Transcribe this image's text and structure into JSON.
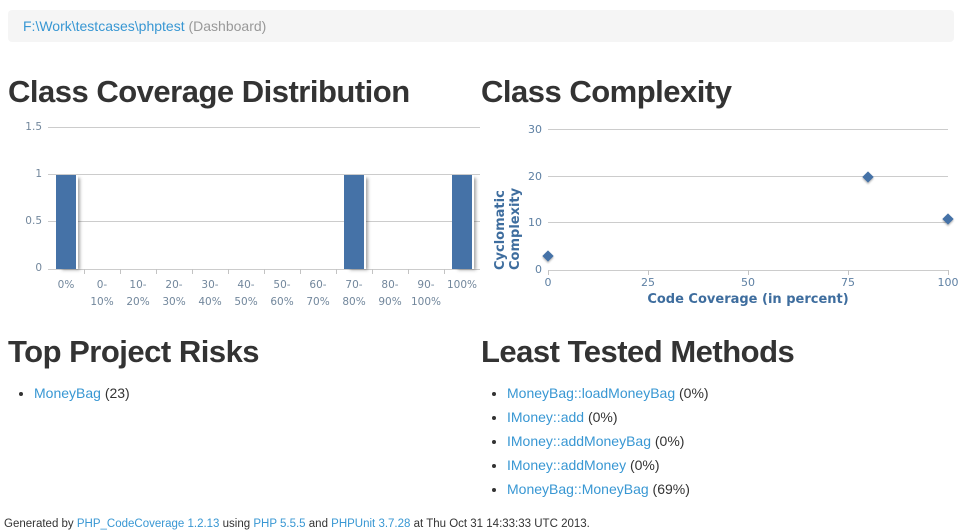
{
  "breadcrumb": {
    "path": "F:\\Work\\testcases\\phptest",
    "context": "(Dashboard)"
  },
  "chart_data": [
    {
      "type": "bar",
      "title": "Class Coverage Distribution",
      "categories": [
        "0%",
        "0-10%",
        "10-20%",
        "20-30%",
        "30-40%",
        "40-50%",
        "50-60%",
        "60-70%",
        "70-80%",
        "80-90%",
        "90-100%",
        "100%"
      ],
      "values": [
        1,
        0,
        0,
        0,
        0,
        0,
        0,
        0,
        1,
        0,
        0,
        1
      ],
      "xlabel": "",
      "ylabel": "",
      "ylim": [
        0,
        1.5
      ],
      "yticks": [
        0,
        0.5,
        1,
        1.5
      ],
      "grid": true,
      "legend": "none",
      "bar_color": "#4572a7"
    },
    {
      "type": "scatter",
      "title": "Class Complexity",
      "xlabel": "Code Coverage (in percent)",
      "ylabel": "Cyclomatic Complexity",
      "points": [
        [
          0,
          3
        ],
        [
          80,
          20
        ],
        [
          100,
          11
        ]
      ],
      "xlim": [
        0,
        100
      ],
      "ylim": [
        0,
        30
      ],
      "xticks": [
        0,
        25,
        50,
        75,
        100
      ],
      "yticks": [
        0,
        10,
        20,
        30
      ],
      "grid": true,
      "legend": "none",
      "marker": "diamond",
      "marker_color": "#4572a7"
    }
  ],
  "top_project_risks": {
    "title": "Top Project Risks",
    "items": [
      {
        "label": "MoneyBag",
        "suffix": " (23)"
      }
    ]
  },
  "least_tested_methods": {
    "title": "Least Tested Methods",
    "items": [
      {
        "label": "MoneyBag::loadMoneyBag",
        "suffix": " (0%)"
      },
      {
        "label": "IMoney::add",
        "suffix": " (0%)"
      },
      {
        "label": "IMoney::addMoneyBag",
        "suffix": " (0%)"
      },
      {
        "label": "IMoney::addMoney",
        "suffix": " (0%)"
      },
      {
        "label": "MoneyBag::MoneyBag",
        "suffix": " (69%)"
      }
    ]
  },
  "footer": {
    "segments": [
      {
        "text": "Generated by ",
        "link": false
      },
      {
        "text": "PHP_CodeCoverage 1.2.13",
        "link": true
      },
      {
        "text": " using ",
        "link": false
      },
      {
        "text": "PHP 5.5.5",
        "link": true
      },
      {
        "text": " and ",
        "link": false
      },
      {
        "text": "PHPUnit 3.7.28",
        "link": true
      },
      {
        "text": " at Thu Oct 31 14:33:33 UTC 2013.",
        "link": false
      }
    ]
  },
  "colors": {
    "link": "#3897d3",
    "series_blue": "#4572a7",
    "grid_line": "#cccccc",
    "tick_text": "#72879c",
    "axis_title_text": "#3e6d9e",
    "breadcrumb_bg": "#f5f5f5",
    "muted_text": "#999999"
  }
}
